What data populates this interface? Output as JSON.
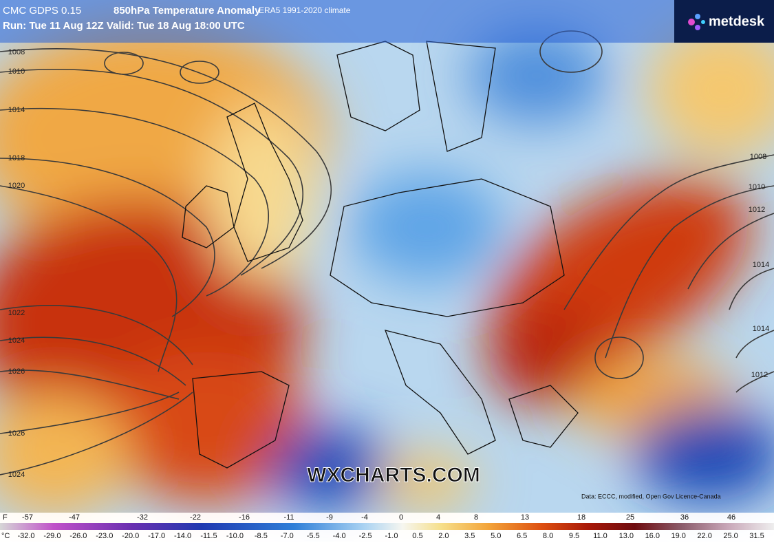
{
  "header": {
    "model": "CMC GDPS 0.15",
    "field": "850hPa Temperature Anomaly",
    "climate": "ERA5 1991-2020 climate",
    "run": "Run: Tue 11 Aug 12Z Valid: Tue 18 Aug 18:00 UTC"
  },
  "logo": "metdesk",
  "watermark": "WXCHARTS.COM",
  "credit": "Data: ECCC, modified, Open Gov Licence-Canada",
  "isobar_labels": [
    "1008",
    "1010",
    "1014",
    "1018",
    "1020",
    "1022",
    "1024",
    "1026",
    "1026",
    "1024",
    "1008",
    "1010",
    "1012",
    "1014",
    "1014",
    "1012"
  ],
  "legend": {
    "f_unit": "F",
    "f_labels": [
      "-57",
      "-47",
      "-32",
      "-22",
      "-16",
      "-11",
      "-9",
      "-4",
      "0",
      "4",
      "8",
      "13",
      "18",
      "25",
      "36",
      "46"
    ],
    "c_unit": "°C",
    "c_labels": [
      "-32.0",
      "-29.0",
      "-26.0",
      "-23.0",
      "-20.0",
      "-17.0",
      "-14.0",
      "-11.5",
      "-10.0",
      "-8.5",
      "-7.0",
      "-5.5",
      "-4.0",
      "-2.5",
      "-1.0",
      "0.5",
      "2.0",
      "3.5",
      "5.0",
      "6.5",
      "8.0",
      "9.5",
      "11.0",
      "13.0",
      "16.0",
      "19.0",
      "22.0",
      "25.0",
      "31.5"
    ]
  }
}
